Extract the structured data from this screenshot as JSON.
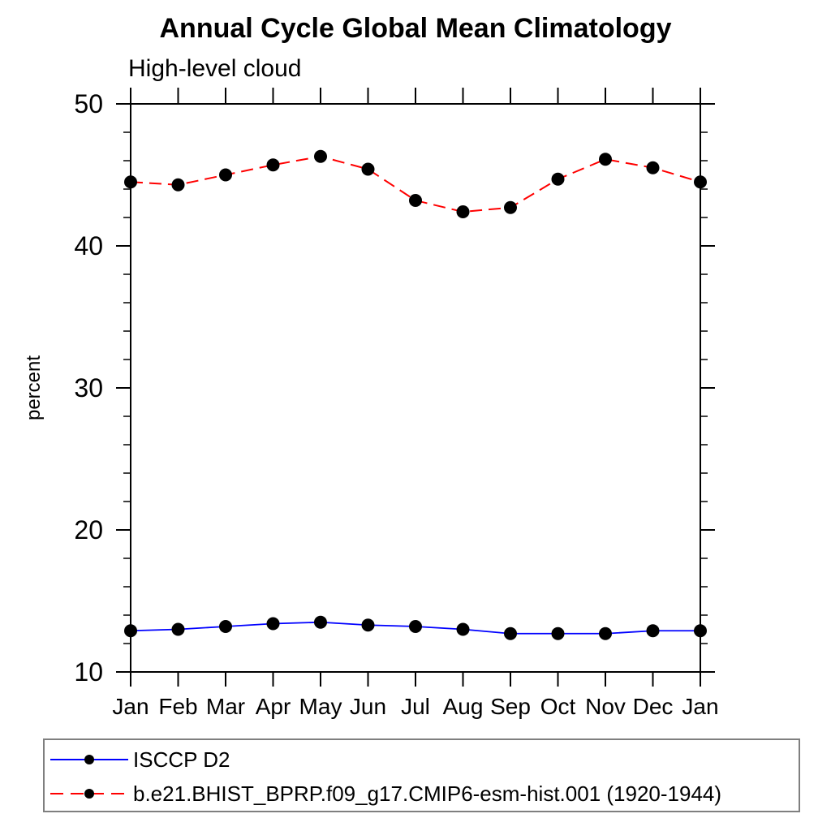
{
  "chart_data": {
    "type": "line",
    "title": "Annual Cycle Global Mean Climatology",
    "subtitle": "High-level cloud",
    "ylabel": "percent",
    "xlabel": "",
    "categories": [
      "Jan",
      "Feb",
      "Mar",
      "Apr",
      "May",
      "Jun",
      "Jul",
      "Aug",
      "Sep",
      "Oct",
      "Nov",
      "Dec",
      "Jan"
    ],
    "ylim": [
      10,
      50
    ],
    "yticks": [
      10,
      20,
      30,
      40,
      50
    ],
    "y_minor_step": 2,
    "grid": false,
    "frame": true,
    "legend_position": "bottom-left-box",
    "axis_color": "#000000",
    "series": [
      {
        "name": "ISCCP D2",
        "color": "#0000ff",
        "style": "solid",
        "marker": "filled-circle",
        "marker_color": "#000000",
        "values": [
          12.9,
          13.0,
          13.2,
          13.4,
          13.5,
          13.3,
          13.2,
          13.0,
          12.7,
          12.7,
          12.7,
          12.9,
          12.9
        ]
      },
      {
        "name": "b.e21.BHIST_BPRP.f09_g17.CMIP6-esm-hist.001 (1920-1944)",
        "color": "#ff0000",
        "style": "dashed",
        "marker": "filled-circle",
        "marker_color": "#000000",
        "values": [
          44.5,
          44.3,
          45.0,
          45.7,
          46.3,
          45.4,
          43.2,
          42.4,
          42.7,
          44.7,
          46.1,
          45.5,
          44.5
        ]
      }
    ]
  }
}
